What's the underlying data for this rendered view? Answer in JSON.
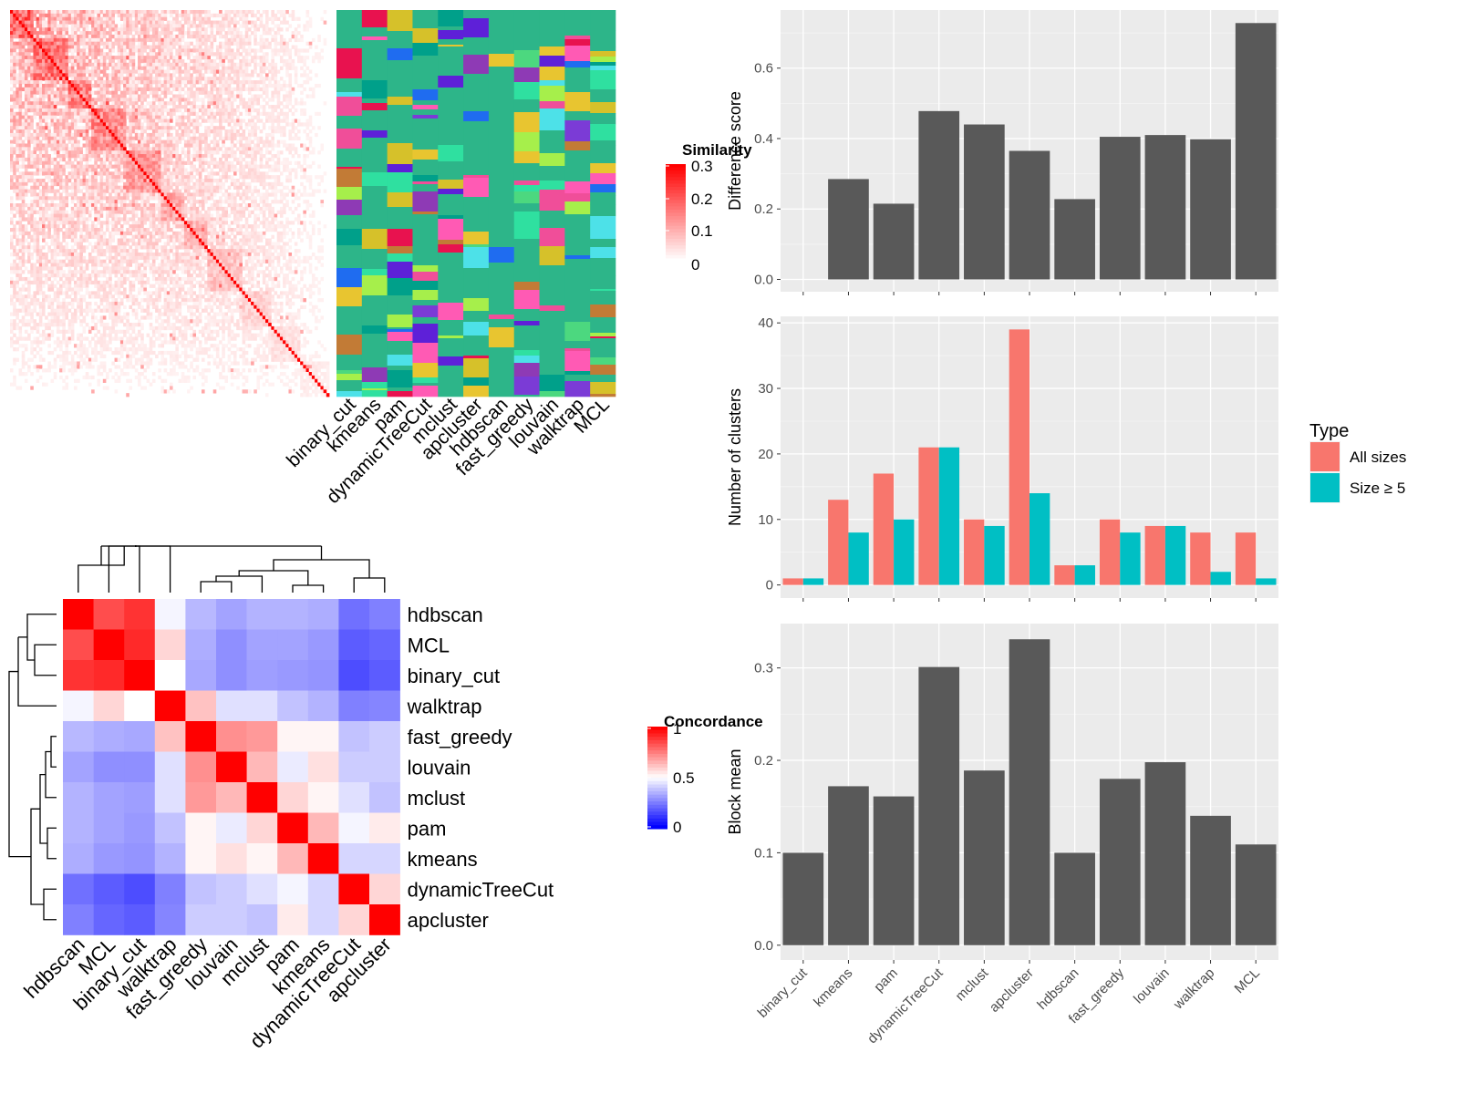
{
  "similarity_panel": {
    "legend_title": "Similarity",
    "legend_ticks": [
      "0.3",
      "0.2",
      "0.1",
      "0"
    ],
    "methods": [
      "binary_cut",
      "kmeans",
      "pam",
      "dynamicTreeCut",
      "mclust",
      "apcluster",
      "hdbscan",
      "fast_greedy",
      "louvain",
      "walktrap",
      "MCL"
    ],
    "colors": {
      "high": "#ff0000",
      "low": "#ffffff"
    }
  },
  "concordance_panel": {
    "legend_title": "Concordance",
    "legend_ticks": [
      "1",
      "0.5",
      "0"
    ],
    "row_labels": [
      "hdbscan",
      "MCL",
      "binary_cut",
      "walktrap",
      "fast_greedy",
      "louvain",
      "mclust",
      "pam",
      "kmeans",
      "dynamicTreeCut",
      "apcluster"
    ],
    "col_labels": [
      "hdbscan",
      "MCL",
      "binary_cut",
      "walktrap",
      "fast_greedy",
      "louvain",
      "mclust",
      "pam",
      "kmeans",
      "dynamicTreeCut",
      "apcluster"
    ],
    "matrix": [
      [
        1.0,
        0.85,
        0.9,
        0.48,
        0.36,
        0.32,
        0.35,
        0.35,
        0.34,
        0.22,
        0.25
      ],
      [
        0.85,
        1.0,
        0.92,
        0.58,
        0.34,
        0.28,
        0.32,
        0.32,
        0.3,
        0.18,
        0.2
      ],
      [
        0.9,
        0.92,
        1.0,
        0.5,
        0.33,
        0.28,
        0.31,
        0.3,
        0.29,
        0.15,
        0.18
      ],
      [
        0.48,
        0.58,
        0.5,
        1.0,
        0.62,
        0.44,
        0.44,
        0.38,
        0.35,
        0.25,
        0.26
      ],
      [
        0.36,
        0.34,
        0.33,
        0.62,
        1.0,
        0.72,
        0.7,
        0.52,
        0.52,
        0.38,
        0.4
      ],
      [
        0.32,
        0.28,
        0.28,
        0.44,
        0.72,
        1.0,
        0.64,
        0.46,
        0.56,
        0.4,
        0.4
      ],
      [
        0.35,
        0.32,
        0.31,
        0.44,
        0.7,
        0.64,
        1.0,
        0.58,
        0.52,
        0.44,
        0.38
      ],
      [
        0.35,
        0.32,
        0.3,
        0.38,
        0.52,
        0.46,
        0.58,
        1.0,
        0.64,
        0.48,
        0.54
      ],
      [
        0.34,
        0.3,
        0.29,
        0.35,
        0.52,
        0.56,
        0.52,
        0.64,
        1.0,
        0.42,
        0.42
      ],
      [
        0.22,
        0.18,
        0.15,
        0.25,
        0.38,
        0.4,
        0.44,
        0.48,
        0.42,
        1.0,
        0.58
      ],
      [
        0.25,
        0.2,
        0.18,
        0.26,
        0.4,
        0.4,
        0.38,
        0.54,
        0.42,
        0.58,
        1.0
      ]
    ],
    "colors": {
      "high": "#ff0000",
      "mid": "#ffffff",
      "low": "#0000ff"
    }
  },
  "chart_data": [
    {
      "type": "bar",
      "title": "",
      "xlabel": "",
      "ylabel": "Difference score",
      "categories": [
        "binary_cut",
        "kmeans",
        "pam",
        "dynamicTreeCut",
        "mclust",
        "apcluster",
        "hdbscan",
        "fast_greedy",
        "louvain",
        "walktrap",
        "MCL"
      ],
      "values": [
        0.0,
        0.285,
        0.215,
        0.478,
        0.44,
        0.365,
        0.228,
        0.405,
        0.41,
        0.398,
        0.728
      ],
      "yticks": [
        "0.0",
        "0.2",
        "0.4",
        "0.6"
      ],
      "ylim": [
        -0.035,
        0.765
      ],
      "grid": true,
      "bar_color": "#595959"
    },
    {
      "type": "bar",
      "title": "",
      "xlabel": "",
      "ylabel": "Number of clusters",
      "categories": [
        "binary_cut",
        "kmeans",
        "pam",
        "dynamicTreeCut",
        "mclust",
        "apcluster",
        "hdbscan",
        "fast_greedy",
        "louvain",
        "walktrap",
        "MCL"
      ],
      "series": [
        {
          "name": "All sizes",
          "values": [
            1,
            13,
            17,
            21,
            10,
            39,
            3,
            10,
            9,
            8,
            8
          ],
          "color": "#f8766d"
        },
        {
          "name": "Size ≥ 5",
          "values": [
            1,
            8,
            10,
            21,
            9,
            14,
            3,
            8,
            9,
            2,
            1
          ],
          "color": "#00bfc4"
        }
      ],
      "yticks": [
        "0",
        "10",
        "20",
        "30",
        "40"
      ],
      "ylim": [
        -2,
        41
      ],
      "grid": true,
      "legend": {
        "title": "Type",
        "position": "right"
      }
    },
    {
      "type": "bar",
      "title": "",
      "xlabel": "",
      "ylabel": "Block mean",
      "categories": [
        "binary_cut",
        "kmeans",
        "pam",
        "dynamicTreeCut",
        "mclust",
        "apcluster",
        "hdbscan",
        "fast_greedy",
        "louvain",
        "walktrap",
        "MCL"
      ],
      "values": [
        0.1,
        0.172,
        0.161,
        0.301,
        0.189,
        0.331,
        0.1,
        0.18,
        0.198,
        0.14,
        0.109
      ],
      "yticks": [
        "0.0",
        "0.1",
        "0.2",
        "0.3"
      ],
      "ylim": [
        -0.016,
        0.348
      ],
      "grid": true,
      "bar_color": "#595959"
    }
  ]
}
